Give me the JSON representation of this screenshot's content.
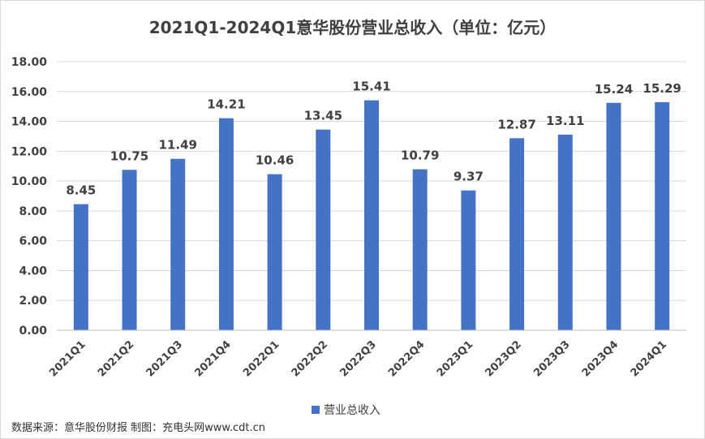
{
  "chart_data": {
    "type": "bar",
    "title": "2021Q1-2024Q1意华股份营业总收入（单位：亿元）",
    "categories": [
      "2021Q1",
      "2021Q2",
      "2021Q3",
      "2021Q4",
      "2022Q1",
      "2022Q2",
      "2022Q3",
      "2022Q4",
      "2023Q1",
      "2023Q2",
      "2023Q3",
      "2023Q4",
      "2024Q1"
    ],
    "series": [
      {
        "name": "营业总收入",
        "values": [
          8.45,
          10.75,
          11.49,
          14.21,
          10.46,
          13.45,
          15.41,
          10.79,
          9.37,
          12.87,
          13.11,
          15.24,
          15.29
        ],
        "color": "#4472c4"
      }
    ],
    "value_labels": [
      "8.45",
      "10.75",
      "11.49",
      "14.21",
      "10.46",
      "13.45",
      "15.41",
      "10.79",
      "9.37",
      "12.87",
      "13.11",
      "15.24",
      "15.29"
    ],
    "yticks": [
      "0.00",
      "2.00",
      "4.00",
      "6.00",
      "8.00",
      "10.00",
      "12.00",
      "14.00",
      "16.00",
      "18.00"
    ],
    "ylim": [
      0,
      18
    ],
    "grid": true,
    "legend_position": "bottom"
  },
  "footer": {
    "source": "数据来源：意华股份财报 制图：充电头网www.cdt.cn"
  }
}
